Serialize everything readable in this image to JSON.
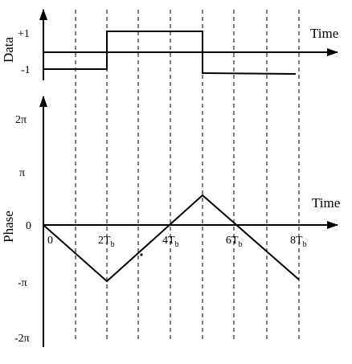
{
  "data_plot": {
    "ylabel": "Data",
    "xlabel": "Time",
    "ticks": {
      "plus_one": "+1",
      "minus_one": "-1"
    }
  },
  "phase_plot": {
    "ylabel": "Phase",
    "xlabel": "Time",
    "y_ticks": [
      "2π",
      "π",
      "0",
      "-π",
      "-2π"
    ],
    "x_ticks": [
      {
        "base": "0",
        "sub": ""
      },
      {
        "base": "2T",
        "sub": "b"
      },
      {
        "base": "4T",
        "sub": "b"
      },
      {
        "base": "6T",
        "sub": "b"
      },
      {
        "base": "8T",
        "sub": "b"
      }
    ]
  },
  "chart_data": [
    {
      "type": "line",
      "title": "",
      "ylabel": "Data",
      "xlabel": "Time",
      "x": [
        0,
        2,
        2,
        5,
        5,
        8
      ],
      "values": [
        -1,
        -1,
        1,
        1,
        -1,
        -1
      ],
      "ylim": [
        -1,
        1
      ],
      "x_unit": "T_b"
    },
    {
      "type": "line",
      "title": "",
      "ylabel": "Phase",
      "xlabel": "Time",
      "x": [
        0,
        2,
        5,
        8
      ],
      "values": [
        0,
        -3.14159,
        3.14159,
        -3.14159
      ],
      "ylim": [
        -6.28318,
        6.28318
      ],
      "x_unit": "T_b"
    }
  ]
}
